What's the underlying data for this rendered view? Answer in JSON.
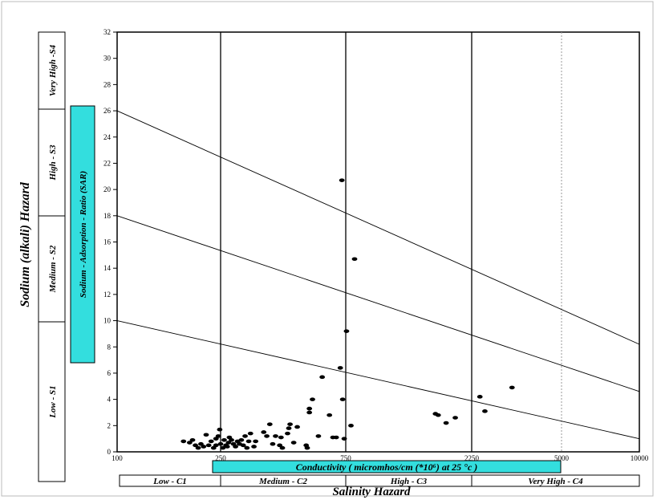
{
  "chart_data": {
    "type": "scatter",
    "title": "",
    "xlabel": "Salinity Hazard",
    "ylabel": "Sodium (alkali) Hazard",
    "ylim": [
      0,
      32
    ],
    "xlim": [
      100,
      10000
    ],
    "x_scale": "piecewise",
    "y_ticks": [
      0,
      2,
      4,
      6,
      8,
      10,
      12,
      14,
      16,
      18,
      20,
      22,
      24,
      26,
      28,
      30,
      32
    ],
    "x_ticks": [
      "100",
      "250",
      "750",
      "2250",
      "5000",
      "10000"
    ],
    "vertical_lines_x": [
      250,
      750,
      2250
    ],
    "dotted_line_x": 5000,
    "sar_box_label": "Sodium - Adsorption - Ratio (SAR)",
    "conductivity_label": "Conductivity ( micromhos/cm (*10⁶) at 25 °c )",
    "salinity_classes": [
      "Low - C1",
      "Medium - C2",
      "High - C3",
      "Very High - C4"
    ],
    "sodium_classes": [
      "Low - S1",
      "Medium - S2",
      "High - S3",
      "Very High -S4"
    ],
    "boundary_lines": [
      {
        "left_y": 10,
        "right_y": 1
      },
      {
        "left_y": 18,
        "right_y": 4.6
      },
      {
        "left_y": 26,
        "right_y": 8.2
      }
    ],
    "colors": {
      "accent_box": "#33dede",
      "line": "#000000",
      "dotted": "#999999"
    },
    "points": [
      {
        "x": 180,
        "y": 0.8
      },
      {
        "x": 190,
        "y": 0.7
      },
      {
        "x": 195,
        "y": 0.9
      },
      {
        "x": 200,
        "y": 0.5
      },
      {
        "x": 205,
        "y": 0.3
      },
      {
        "x": 210,
        "y": 0.6
      },
      {
        "x": 215,
        "y": 0.4
      },
      {
        "x": 220,
        "y": 1.3
      },
      {
        "x": 225,
        "y": 0.5
      },
      {
        "x": 230,
        "y": 0.8
      },
      {
        "x": 235,
        "y": 0.3
      },
      {
        "x": 240,
        "y": 1.0
      },
      {
        "x": 240,
        "y": 0.5
      },
      {
        "x": 245,
        "y": 1.2
      },
      {
        "x": 248,
        "y": 1.7
      },
      {
        "x": 250,
        "y": 0.6
      },
      {
        "x": 255,
        "y": 0.3
      },
      {
        "x": 258,
        "y": 0.9
      },
      {
        "x": 262,
        "y": 0.5
      },
      {
        "x": 265,
        "y": 0.4
      },
      {
        "x": 268,
        "y": 0.7
      },
      {
        "x": 270,
        "y": 1.1
      },
      {
        "x": 275,
        "y": 0.9
      },
      {
        "x": 280,
        "y": 0.6
      },
      {
        "x": 285,
        "y": 0.4
      },
      {
        "x": 290,
        "y": 0.8
      },
      {
        "x": 295,
        "y": 0.6
      },
      {
        "x": 300,
        "y": 0.9
      },
      {
        "x": 305,
        "y": 0.5
      },
      {
        "x": 310,
        "y": 1.2
      },
      {
        "x": 315,
        "y": 0.3
      },
      {
        "x": 320,
        "y": 0.8
      },
      {
        "x": 325,
        "y": 1.4
      },
      {
        "x": 335,
        "y": 0.4
      },
      {
        "x": 340,
        "y": 0.8
      },
      {
        "x": 365,
        "y": 1.5
      },
      {
        "x": 375,
        "y": 1.2
      },
      {
        "x": 385,
        "y": 2.1
      },
      {
        "x": 395,
        "y": 0.6
      },
      {
        "x": 405,
        "y": 1.2
      },
      {
        "x": 420,
        "y": 0.5
      },
      {
        "x": 425,
        "y": 1.1
      },
      {
        "x": 430,
        "y": 0.3
      },
      {
        "x": 450,
        "y": 1.4
      },
      {
        "x": 455,
        "y": 1.8
      },
      {
        "x": 460,
        "y": 2.1
      },
      {
        "x": 475,
        "y": 0.7
      },
      {
        "x": 490,
        "y": 1.9
      },
      {
        "x": 530,
        "y": 0.5
      },
      {
        "x": 535,
        "y": 0.3
      },
      {
        "x": 545,
        "y": 3.0
      },
      {
        "x": 545,
        "y": 3.3
      },
      {
        "x": 560,
        "y": 4.0
      },
      {
        "x": 590,
        "y": 1.2
      },
      {
        "x": 610,
        "y": 5.7
      },
      {
        "x": 650,
        "y": 2.8
      },
      {
        "x": 670,
        "y": 1.1
      },
      {
        "x": 690,
        "y": 1.1
      },
      {
        "x": 715,
        "y": 6.4
      },
      {
        "x": 725,
        "y": 20.7
      },
      {
        "x": 730,
        "y": 4.0
      },
      {
        "x": 740,
        "y": 1.0
      },
      {
        "x": 755,
        "y": 9.2
      },
      {
        "x": 785,
        "y": 2.0
      },
      {
        "x": 810,
        "y": 14.7
      },
      {
        "x": 1640,
        "y": 2.9
      },
      {
        "x": 1680,
        "y": 2.8
      },
      {
        "x": 1800,
        "y": 2.2
      },
      {
        "x": 1950,
        "y": 2.6
      },
      {
        "x": 2420,
        "y": 4.2
      },
      {
        "x": 2530,
        "y": 3.1
      },
      {
        "x": 3220,
        "y": 4.9
      }
    ]
  }
}
